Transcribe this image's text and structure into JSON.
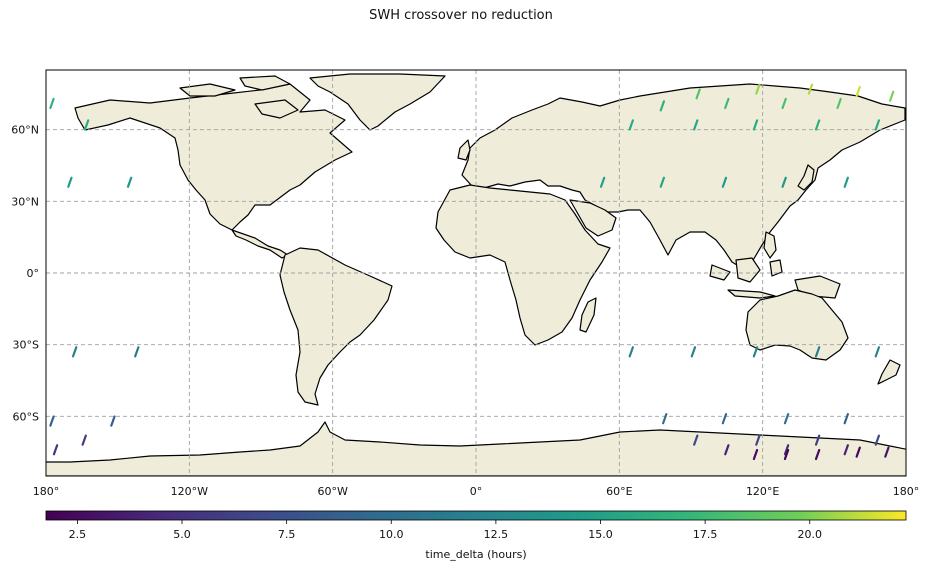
{
  "title": "SWH crossover no reduction",
  "map": {
    "projection": "PlateCarree",
    "extent": {
      "lon": [
        -180,
        180
      ],
      "lat": [
        -85,
        85
      ]
    },
    "gridlines": "dashed",
    "land_color": "#efedda",
    "coastline_color": "#000000",
    "x_ticks": [
      {
        "value": -180,
        "label": "180°"
      },
      {
        "value": -120,
        "label": "120°W"
      },
      {
        "value": -60,
        "label": "60°W"
      },
      {
        "value": 0,
        "label": "0°"
      },
      {
        "value": 60,
        "label": "60°E"
      },
      {
        "value": 120,
        "label": "120°E"
      },
      {
        "value": 180,
        "label": "180°"
      }
    ],
    "y_ticks": [
      {
        "value": 60,
        "label": "60°N"
      },
      {
        "value": 30,
        "label": "30°N"
      },
      {
        "value": 0,
        "label": "0°"
      },
      {
        "value": -30,
        "label": "30°S"
      },
      {
        "value": -60,
        "label": "60°S"
      }
    ]
  },
  "chart_data": {
    "type": "scatter",
    "xlabel": "",
    "ylabel": "",
    "colorbar": {
      "label": "time_delta (hours)",
      "cmap": "viridis",
      "range": [
        1.75,
        22.3
      ],
      "ticks": [
        2.5,
        5.0,
        7.5,
        10.0,
        12.5,
        15.0,
        17.5,
        20.0
      ],
      "tick_labels": [
        "2.5",
        "5.0",
        "7.5",
        "10.0",
        "12.5",
        "15.0",
        "17.5",
        "20.0"
      ]
    },
    "segments": [
      {
        "lon": -177.5,
        "lat": 71,
        "v": 16.5
      },
      {
        "lon": -163,
        "lat": 62,
        "v": 16.0
      },
      {
        "lon": -170,
        "lat": 38,
        "v": 14.5
      },
      {
        "lon": -145,
        "lat": 38,
        "v": 14.0
      },
      {
        "lon": -168,
        "lat": -33,
        "v": 11.5
      },
      {
        "lon": -142,
        "lat": -33,
        "v": 11.0
      },
      {
        "lon": -177.5,
        "lat": -62,
        "v": 9.0
      },
      {
        "lon": -152,
        "lat": -62,
        "v": 8.5
      },
      {
        "lon": -176,
        "lat": -74,
        "v": 5.5
      },
      {
        "lon": -164,
        "lat": -70,
        "v": 6.0
      },
      {
        "lon": 65,
        "lat": 62,
        "v": 16.0
      },
      {
        "lon": 78,
        "lat": 70,
        "v": 16.5
      },
      {
        "lon": 92,
        "lat": 62,
        "v": 15.5
      },
      {
        "lon": 93,
        "lat": 75,
        "v": 18.5
      },
      {
        "lon": 105,
        "lat": 71,
        "v": 17.5
      },
      {
        "lon": 117,
        "lat": 62,
        "v": 16.0
      },
      {
        "lon": 118,
        "lat": 77,
        "v": 20.5
      },
      {
        "lon": 129,
        "lat": 71,
        "v": 18.0
      },
      {
        "lon": 140,
        "lat": 77,
        "v": 21.0
      },
      {
        "lon": 143,
        "lat": 62,
        "v": 16.5
      },
      {
        "lon": 152,
        "lat": 71,
        "v": 18.5
      },
      {
        "lon": 160,
        "lat": 76,
        "v": 21.5
      },
      {
        "lon": 168,
        "lat": 62,
        "v": 16.0
      },
      {
        "lon": 174,
        "lat": 74,
        "v": 20.0
      },
      {
        "lon": 53,
        "lat": 38,
        "v": 15.0
      },
      {
        "lon": 78,
        "lat": 38,
        "v": 15.5
      },
      {
        "lon": 104,
        "lat": 38,
        "v": 14.5
      },
      {
        "lon": 129,
        "lat": 38,
        "v": 14.0
      },
      {
        "lon": 155,
        "lat": 38,
        "v": 14.5
      },
      {
        "lon": 65,
        "lat": -33,
        "v": 12.0
      },
      {
        "lon": 91,
        "lat": -33,
        "v": 11.5
      },
      {
        "lon": 117,
        "lat": -33,
        "v": 12.5
      },
      {
        "lon": 143,
        "lat": -33,
        "v": 11.5
      },
      {
        "lon": 168,
        "lat": -33,
        "v": 12.0
      },
      {
        "lon": 79,
        "lat": -61,
        "v": 10.0
      },
      {
        "lon": 104,
        "lat": -61,
        "v": 9.5
      },
      {
        "lon": 130,
        "lat": -61,
        "v": 10.0
      },
      {
        "lon": 155,
        "lat": -61,
        "v": 9.0
      },
      {
        "lon": 92,
        "lat": -70,
        "v": 7.0
      },
      {
        "lon": 118,
        "lat": -70,
        "v": 6.5
      },
      {
        "lon": 143,
        "lat": -70,
        "v": 6.0
      },
      {
        "lon": 168,
        "lat": -70,
        "v": 7.0
      },
      {
        "lon": 105,
        "lat": -74,
        "v": 4.0
      },
      {
        "lon": 130,
        "lat": -74,
        "v": 4.5
      },
      {
        "lon": 155,
        "lat": -74,
        "v": 4.0
      },
      {
        "lon": 117,
        "lat": -76,
        "v": 2.5
      },
      {
        "lon": 130,
        "lat": -76,
        "v": 2.0
      },
      {
        "lon": 143,
        "lat": -76,
        "v": 2.5
      },
      {
        "lon": 160,
        "lat": -75,
        "v": 2.0
      },
      {
        "lon": 172,
        "lat": -75,
        "v": 3.0
      }
    ]
  }
}
